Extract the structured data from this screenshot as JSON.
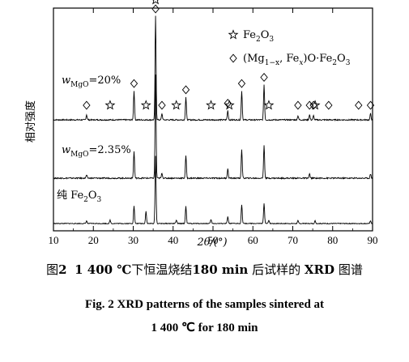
{
  "chart_data": {
    "type": "line",
    "xlabel": "2θ/(°)",
    "ylabel": "相对强度",
    "xlim": [
      10,
      90
    ],
    "x_ticks": [
      10,
      20,
      30,
      40,
      50,
      60,
      70,
      80,
      90
    ],
    "grid": false,
    "legend_position": "top-right",
    "legend": [
      {
        "marker": "star",
        "label": "Fe2O3"
      },
      {
        "marker": "diamond",
        "label": "(Mg1−x, Fex)O·Fe2O3"
      }
    ],
    "series": [
      {
        "label_main": "w",
        "label_sub": "MgO",
        "label_rest": "=20%",
        "peaks": [
          {
            "two_theta": 18.3,
            "intensity": 0.05
          },
          {
            "two_theta": 30.2,
            "intensity": 0.28
          },
          {
            "two_theta": 35.6,
            "intensity": 1.0
          },
          {
            "two_theta": 37.2,
            "intensity": 0.06
          },
          {
            "two_theta": 43.2,
            "intensity": 0.22
          },
          {
            "two_theta": 53.7,
            "intensity": 0.09
          },
          {
            "two_theta": 57.2,
            "intensity": 0.28
          },
          {
            "two_theta": 62.8,
            "intensity": 0.34
          },
          {
            "two_theta": 71.3,
            "intensity": 0.04
          },
          {
            "two_theta": 74.2,
            "intensity": 0.05
          },
          {
            "two_theta": 75.2,
            "intensity": 0.04
          },
          {
            "two_theta": 89.5,
            "intensity": 0.06
          }
        ],
        "markers": [
          {
            "two_theta": 18.3,
            "symbol": "diamond"
          },
          {
            "two_theta": 24.2,
            "symbol": "star"
          },
          {
            "two_theta": 30.2,
            "symbol": "diamond"
          },
          {
            "two_theta": 33.2,
            "symbol": "star"
          },
          {
            "two_theta": 35.6,
            "symbol": "star"
          },
          {
            "two_theta": 35.6,
            "symbol": "diamond"
          },
          {
            "two_theta": 37.2,
            "symbol": "diamond"
          },
          {
            "two_theta": 40.8,
            "symbol": "star"
          },
          {
            "two_theta": 43.2,
            "symbol": "diamond"
          },
          {
            "two_theta": 49.5,
            "symbol": "star"
          },
          {
            "two_theta": 53.7,
            "symbol": "diamond"
          },
          {
            "two_theta": 54.1,
            "symbol": "star"
          },
          {
            "two_theta": 57.2,
            "symbol": "diamond"
          },
          {
            "two_theta": 62.8,
            "symbol": "diamond"
          },
          {
            "two_theta": 64.0,
            "symbol": "star"
          },
          {
            "two_theta": 71.3,
            "symbol": "diamond"
          },
          {
            "two_theta": 74.2,
            "symbol": "diamond"
          },
          {
            "two_theta": 75.2,
            "symbol": "diamond"
          },
          {
            "two_theta": 75.6,
            "symbol": "star"
          },
          {
            "two_theta": 79.0,
            "symbol": "diamond"
          },
          {
            "two_theta": 86.5,
            "symbol": "diamond"
          },
          {
            "two_theta": 89.5,
            "symbol": "diamond"
          }
        ]
      },
      {
        "label_main": "w",
        "label_sub": "MgO",
        "label_rest": "=2.35%",
        "peaks": [
          {
            "two_theta": 18.3,
            "intensity": 0.03
          },
          {
            "two_theta": 30.2,
            "intensity": 0.26
          },
          {
            "two_theta": 35.6,
            "intensity": 1.0
          },
          {
            "two_theta": 37.2,
            "intensity": 0.05
          },
          {
            "two_theta": 43.2,
            "intensity": 0.22
          },
          {
            "two_theta": 53.7,
            "intensity": 0.09
          },
          {
            "two_theta": 57.2,
            "intensity": 0.28
          },
          {
            "two_theta": 62.8,
            "intensity": 0.32
          },
          {
            "two_theta": 74.2,
            "intensity": 0.04
          },
          {
            "two_theta": 89.5,
            "intensity": 0.04
          }
        ]
      },
      {
        "label_main": "纯 Fe",
        "label_sub": "2",
        "label_rest": "O",
        "label_sub2": "3",
        "peaks": [
          {
            "two_theta": 18.3,
            "intensity": 0.04
          },
          {
            "two_theta": 24.2,
            "intensity": 0.05
          },
          {
            "two_theta": 30.2,
            "intensity": 0.26
          },
          {
            "two_theta": 33.2,
            "intensity": 0.18
          },
          {
            "two_theta": 35.6,
            "intensity": 1.0
          },
          {
            "two_theta": 40.8,
            "intensity": 0.05
          },
          {
            "two_theta": 43.2,
            "intensity": 0.26
          },
          {
            "two_theta": 49.5,
            "intensity": 0.06
          },
          {
            "two_theta": 53.7,
            "intensity": 0.1
          },
          {
            "two_theta": 57.2,
            "intensity": 0.28
          },
          {
            "two_theta": 62.8,
            "intensity": 0.3
          },
          {
            "two_theta": 64.0,
            "intensity": 0.05
          },
          {
            "two_theta": 71.3,
            "intensity": 0.04
          },
          {
            "two_theta": 75.6,
            "intensity": 0.04
          },
          {
            "two_theta": 89.5,
            "intensity": 0.04
          }
        ]
      }
    ]
  },
  "caption": {
    "zh_fig": "图",
    "zh_fignum": "2",
    "zh_temp": "1 400 ℃",
    "zh_t1": "下恒温烧结",
    "zh_time": "180 min",
    "zh_t2": "后试样的",
    "zh_xrd": "XRD",
    "zh_t3": "图谱",
    "en_line1": "Fig. 2   XRD patterns of the samples sintered at",
    "en_line2": "1 400 ℃ for 180 min"
  }
}
